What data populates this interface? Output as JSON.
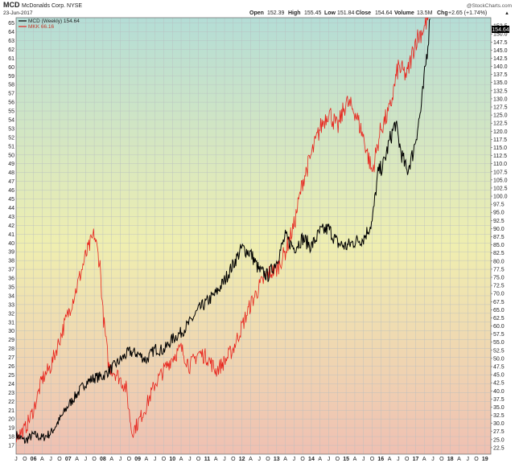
{
  "header": {
    "symbol": "MCD",
    "company": "McDonalds Corp. NYSE",
    "date": "23-Jun-2017",
    "open_label": "Open",
    "open": "152.39",
    "high_label": "High",
    "high": "155.45",
    "low_label": "Low",
    "low": "151.84",
    "close_label": "Close",
    "close": "154.64",
    "volume_label": "Volume",
    "volume": "13.5M",
    "chg_label": "Chg",
    "chg": "+2.65 (+1.74%)",
    "chg_arrow": "▲",
    "watermark": "@StockCharts.com"
  },
  "legend": {
    "mcd": "MCD (Weekly) 154.64",
    "mkk": "MKK 66.16"
  },
  "colors": {
    "mcd_line": "#000000",
    "mkk_line": "#e8231c",
    "last_tag_bg": "#000000",
    "grid": "#b8bcc0",
    "bg_top": "#b4ddd6",
    "bg_mid": "#efeeb0",
    "bg_bottom": "#efc0b2"
  },
  "chart_data": {
    "type": "line",
    "x_axis": {
      "labels": [
        "J",
        "O",
        "06",
        "A",
        "J",
        "O",
        "07",
        "A",
        "J",
        "O",
        "08",
        "A",
        "J",
        "O",
        "09",
        "A",
        "J",
        "O",
        "10",
        "A",
        "J",
        "O",
        "11",
        "A",
        "J",
        "O",
        "12",
        "A",
        "J",
        "O",
        "13",
        "A",
        "J",
        "O",
        "14",
        "A",
        "J",
        "O",
        "15",
        "A",
        "J",
        "O",
        "16",
        "A",
        "J",
        "O",
        "17",
        "A",
        "J",
        "O",
        "18",
        "A",
        "J",
        "O",
        "19"
      ],
      "range": [
        "2005-07",
        "2019-03"
      ]
    },
    "left_axis": {
      "series": "MKK",
      "ylim": [
        16,
        65.6
      ],
      "ticks": [
        "17",
        "18",
        "19",
        "20",
        "21",
        "22",
        "23",
        "24",
        "25",
        "26",
        "27",
        "28",
        "29",
        "30",
        "31",
        "32",
        "33",
        "34",
        "35",
        "36",
        "37",
        "38",
        "39",
        "40",
        "41",
        "42",
        "43",
        "44",
        "45",
        "46",
        "47",
        "48",
        "49",
        "50",
        "51",
        "52",
        "53",
        "54",
        "55",
        "56",
        "57",
        "58",
        "59",
        "60",
        "61",
        "62",
        "63",
        "64",
        "65"
      ]
    },
    "right_axis": {
      "series": "MCD",
      "ylim": [
        20.5,
        155
      ],
      "ticks": [
        "22.5",
        "25.0",
        "27.5",
        "30.0",
        "32.5",
        "35.0",
        "37.5",
        "40.0",
        "42.5",
        "45.0",
        "47.5",
        "50.0",
        "52.5",
        "55.0",
        "57.5",
        "60.0",
        "62.5",
        "65.0",
        "67.5",
        "70.0",
        "72.5",
        "75.0",
        "77.5",
        "80.0",
        "82.5",
        "85.0",
        "87.5",
        "90.0",
        "92.5",
        "95.0",
        "97.5",
        "100.0",
        "102.5",
        "105.0",
        "107.5",
        "110.0",
        "112.5",
        "115.0",
        "117.5",
        "120.0",
        "122.5",
        "125.0",
        "127.5",
        "130.0",
        "132.5",
        "135.0",
        "137.5",
        "140.0",
        "142.5",
        "145.0",
        "147.5",
        "150.0",
        "152.5"
      ],
      "last_value": "154.64"
    },
    "series": [
      {
        "name": "MCD (Weekly)",
        "axis": "right",
        "points": [
          [
            "2005-07",
            26.5
          ],
          [
            "2005-10",
            24.5
          ],
          [
            "2006-01",
            26.5
          ],
          [
            "2006-04",
            25.5
          ],
          [
            "2006-07",
            27.0
          ],
          [
            "2006-10",
            31.0
          ],
          [
            "2007-01",
            35.5
          ],
          [
            "2007-04",
            39.0
          ],
          [
            "2007-07",
            42.5
          ],
          [
            "2007-10",
            44.0
          ],
          [
            "2008-01",
            44.5
          ],
          [
            "2008-04",
            47.0
          ],
          [
            "2008-07",
            49.5
          ],
          [
            "2008-10",
            52.0
          ],
          [
            "2009-01",
            51.5
          ],
          [
            "2009-04",
            49.5
          ],
          [
            "2009-07",
            53.0
          ],
          [
            "2009-10",
            52.5
          ],
          [
            "2010-01",
            56.0
          ],
          [
            "2010-04",
            58.0
          ],
          [
            "2010-07",
            61.0
          ],
          [
            "2010-10",
            65.0
          ],
          [
            "2011-01",
            67.5
          ],
          [
            "2011-04",
            70.0
          ],
          [
            "2011-07",
            74.0
          ],
          [
            "2011-10",
            79.0
          ],
          [
            "2012-01",
            84.0
          ],
          [
            "2012-04",
            82.5
          ],
          [
            "2012-07",
            77.0
          ],
          [
            "2012-10",
            75.5
          ],
          [
            "2013-01",
            80.0
          ],
          [
            "2013-04",
            87.5
          ],
          [
            "2013-07",
            84.0
          ],
          [
            "2013-10",
            87.0
          ],
          [
            "2014-01",
            84.5
          ],
          [
            "2014-04",
            89.0
          ],
          [
            "2014-07",
            90.0
          ],
          [
            "2014-10",
            85.5
          ],
          [
            "2015-01",
            84.5
          ],
          [
            "2015-04",
            86.0
          ],
          [
            "2015-07",
            87.0
          ],
          [
            "2015-10",
            92.0
          ],
          [
            "2015-12",
            107.0
          ],
          [
            "2016-02",
            110.0
          ],
          [
            "2016-04",
            117.0
          ],
          [
            "2016-06",
            122.5
          ],
          [
            "2016-08",
            113.5
          ],
          [
            "2016-10",
            107.5
          ],
          [
            "2016-12",
            113.0
          ],
          [
            "2017-01",
            117.5
          ],
          [
            "2017-03",
            127.5
          ],
          [
            "2017-05",
            145.0
          ],
          [
            "2017-06",
            154.64
          ]
        ]
      },
      {
        "name": "MKK",
        "axis": "left",
        "points": [
          [
            "2005-07",
            18.0
          ],
          [
            "2005-10",
            18.8
          ],
          [
            "2006-01",
            21.0
          ],
          [
            "2006-04",
            24.5
          ],
          [
            "2006-07",
            26.0
          ],
          [
            "2006-10",
            29.0
          ],
          [
            "2007-01",
            32.0
          ],
          [
            "2007-04",
            35.0
          ],
          [
            "2007-07",
            38.5
          ],
          [
            "2007-10",
            41.0
          ],
          [
            "2007-12",
            37.5
          ],
          [
            "2008-01",
            32.0
          ],
          [
            "2008-03",
            26.0
          ],
          [
            "2008-06",
            25.0
          ],
          [
            "2008-09",
            23.5
          ],
          [
            "2008-11",
            18.5
          ],
          [
            "2009-01",
            19.5
          ],
          [
            "2009-04",
            21.5
          ],
          [
            "2009-07",
            24.0
          ],
          [
            "2009-10",
            25.5
          ],
          [
            "2010-01",
            27.0
          ],
          [
            "2010-04",
            28.0
          ],
          [
            "2010-07",
            26.0
          ],
          [
            "2010-10",
            27.5
          ],
          [
            "2011-01",
            27.0
          ],
          [
            "2011-04",
            25.5
          ],
          [
            "2011-07",
            26.5
          ],
          [
            "2011-10",
            28.0
          ],
          [
            "2012-01",
            30.5
          ],
          [
            "2012-04",
            33.0
          ],
          [
            "2012-07",
            35.0
          ],
          [
            "2012-10",
            36.5
          ],
          [
            "2013-01",
            37.0
          ],
          [
            "2013-04",
            39.0
          ],
          [
            "2013-07",
            42.0
          ],
          [
            "2013-10",
            47.0
          ],
          [
            "2014-01",
            50.0
          ],
          [
            "2014-04",
            53.0
          ],
          [
            "2014-07",
            55.0
          ],
          [
            "2014-10",
            53.0
          ],
          [
            "2015-01",
            56.0
          ],
          [
            "2015-04",
            55.0
          ],
          [
            "2015-07",
            52.0
          ],
          [
            "2015-10",
            48.0
          ],
          [
            "2016-01",
            53.0
          ],
          [
            "2016-04",
            55.0
          ],
          [
            "2016-07",
            60.0
          ],
          [
            "2016-10",
            59.0
          ],
          [
            "2017-01",
            63.0
          ],
          [
            "2017-04",
            64.5
          ],
          [
            "2017-06",
            66.16
          ]
        ]
      }
    ],
    "grid": true,
    "legend_position": "top-left"
  }
}
